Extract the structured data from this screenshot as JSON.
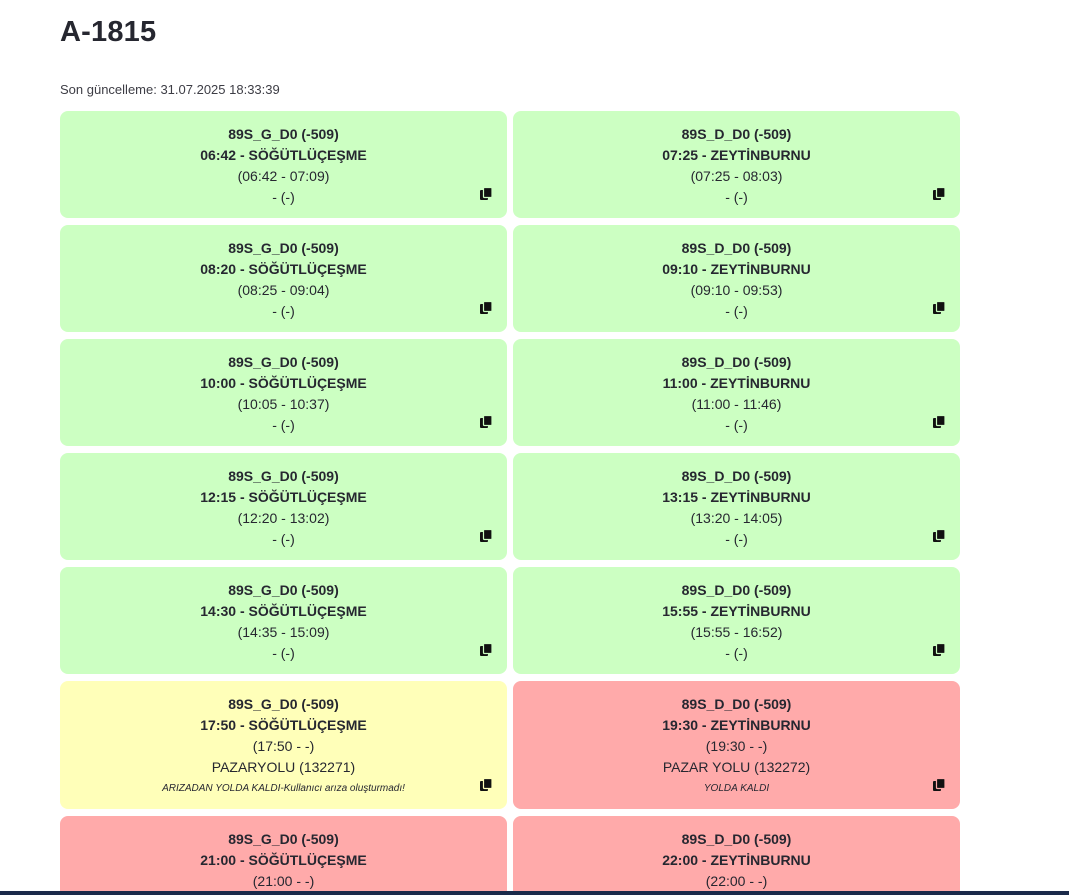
{
  "page": {
    "title": "A-1815",
    "last_update": "Son güncelleme: 31.07.2025 18:33:39"
  },
  "colors": {
    "green": "#ccffc2",
    "yellow": "#ffffb9",
    "red": "#ffaaaa"
  },
  "trips": [
    {
      "route": "89S_G_D0 (-509)",
      "departure": "06:42 - SÖĞÜTLÜÇEŞME",
      "times": "(06:42 - 07:09)",
      "location": "- (-)",
      "note": "",
      "status": "green",
      "icon": "copy-icon"
    },
    {
      "route": "89S_D_D0 (-509)",
      "departure": "07:25 - ZEYTİNBURNU",
      "times": "(07:25 - 08:03)",
      "location": "- (-)",
      "note": "",
      "status": "green",
      "icon": "copy-icon"
    },
    {
      "route": "89S_G_D0 (-509)",
      "departure": "08:20 - SÖĞÜTLÜÇEŞME",
      "times": "(08:25 - 09:04)",
      "location": "- (-)",
      "note": "",
      "status": "green",
      "icon": "copy-icon"
    },
    {
      "route": "89S_D_D0 (-509)",
      "departure": "09:10 - ZEYTİNBURNU",
      "times": "(09:10 - 09:53)",
      "location": "- (-)",
      "note": "",
      "status": "green",
      "icon": "copy-icon"
    },
    {
      "route": "89S_G_D0 (-509)",
      "departure": "10:00 - SÖĞÜTLÜÇEŞME",
      "times": "(10:05 - 10:37)",
      "location": "- (-)",
      "note": "",
      "status": "green",
      "icon": "copy-icon"
    },
    {
      "route": "89S_D_D0 (-509)",
      "departure": "11:00 - ZEYTİNBURNU",
      "times": "(11:00 - 11:46)",
      "location": "- (-)",
      "note": "",
      "status": "green",
      "icon": "copy-icon"
    },
    {
      "route": "89S_G_D0 (-509)",
      "departure": "12:15 - SÖĞÜTLÜÇEŞME",
      "times": "(12:20 - 13:02)",
      "location": "- (-)",
      "note": "",
      "status": "green",
      "icon": "copy-icon"
    },
    {
      "route": "89S_D_D0 (-509)",
      "departure": "13:15 - ZEYTİNBURNU",
      "times": "(13:20 - 14:05)",
      "location": "- (-)",
      "note": "",
      "status": "green",
      "icon": "copy-icon"
    },
    {
      "route": "89S_G_D0 (-509)",
      "departure": "14:30 - SÖĞÜTLÜÇEŞME",
      "times": "(14:35 - 15:09)",
      "location": "- (-)",
      "note": "",
      "status": "green",
      "icon": "copy-icon"
    },
    {
      "route": "89S_D_D0 (-509)",
      "departure": "15:55 - ZEYTİNBURNU",
      "times": "(15:55 - 16:52)",
      "location": "- (-)",
      "note": "",
      "status": "green",
      "icon": "copy-icon"
    },
    {
      "route": "89S_G_D0 (-509)",
      "departure": "17:50 - SÖĞÜTLÜÇEŞME",
      "times": "(17:50 - -)",
      "location": "PAZARYOLU (132271)",
      "note": "ARIZADAN YOLDA KALDI-Kullanıcı arıza oluşturmadı!",
      "status": "yellow",
      "icon": "copy-icon"
    },
    {
      "route": "89S_D_D0 (-509)",
      "departure": "19:30 - ZEYTİNBURNU",
      "times": "(19:30 - -)",
      "location": "PAZAR YOLU (132272)",
      "note": "YOLDA KALDI",
      "status": "red",
      "icon": "copy-icon"
    },
    {
      "route": "89S_G_D0 (-509)",
      "departure": "21:00 - SÖĞÜTLÜÇEŞME",
      "times": "(21:00 - -)",
      "location": "",
      "note": "",
      "status": "red",
      "icon": "copy-icon"
    },
    {
      "route": "89S_D_D0 (-509)",
      "departure": "22:00 - ZEYTİNBURNU",
      "times": "(22:00 - -)",
      "location": "",
      "note": "",
      "status": "red",
      "icon": "copy-icon"
    }
  ]
}
